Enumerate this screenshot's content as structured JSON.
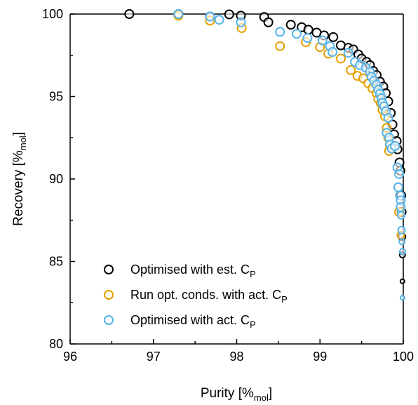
{
  "chart_data": {
    "type": "scatter",
    "xlabel": "Purity [%",
    "xlabel_sub": "mol",
    "xlabel_end": "]",
    "ylabel": "Recovery [%",
    "ylabel_sub": "mol",
    "ylabel_end": "]",
    "xlim": [
      96,
      100
    ],
    "ylim": [
      80,
      100
    ],
    "xticks": [
      "96",
      "97",
      "98",
      "99",
      "100"
    ],
    "yticks": [
      "80",
      "85",
      "90",
      "95",
      "100"
    ],
    "grid": false,
    "legend_placement": "bottom-left",
    "series": [
      {
        "name": "Optimised with est. C",
        "name_sub": "P",
        "color": "#000000",
        "points": [
          [
            96.71,
            100.0
          ],
          [
            97.3,
            100.0
          ],
          [
            97.68,
            99.85
          ],
          [
            97.91,
            99.98
          ],
          [
            98.05,
            99.9
          ],
          [
            98.33,
            99.82
          ],
          [
            98.38,
            99.5
          ],
          [
            98.65,
            99.35
          ],
          [
            98.78,
            99.2
          ],
          [
            98.86,
            99.05
          ],
          [
            98.96,
            98.87
          ],
          [
            99.05,
            98.7
          ],
          [
            99.16,
            98.6
          ],
          [
            99.25,
            98.1
          ],
          [
            99.34,
            97.95
          ],
          [
            99.4,
            97.85
          ],
          [
            99.46,
            97.55
          ],
          [
            99.5,
            97.3
          ],
          [
            99.56,
            97.1
          ],
          [
            99.6,
            96.9
          ],
          [
            99.64,
            96.55
          ],
          [
            99.68,
            96.3
          ],
          [
            99.72,
            95.9
          ],
          [
            99.76,
            95.6
          ],
          [
            99.79,
            95.2
          ],
          [
            99.82,
            94.7
          ],
          [
            99.85,
            94.0
          ],
          [
            99.87,
            93.3
          ],
          [
            99.89,
            92.7
          ],
          [
            99.92,
            92.3
          ],
          [
            99.93,
            91.8
          ],
          [
            99.955,
            91.0
          ],
          [
            99.965,
            90.5
          ],
          [
            99.975,
            89.0
          ],
          [
            99.98,
            88.0
          ],
          [
            99.985,
            86.5
          ],
          [
            99.99,
            85.4
          ],
          [
            99.99,
            83.8
          ]
        ]
      },
      {
        "name": "Run opt. conds. with act. C",
        "name_sub": "P",
        "color": "#E69F00",
        "points": [
          [
            97.3,
            99.9
          ],
          [
            97.68,
            99.6
          ],
          [
            98.06,
            99.15
          ],
          [
            98.52,
            98.05
          ],
          [
            98.83,
            98.3
          ],
          [
            99.0,
            98.0
          ],
          [
            99.1,
            97.6
          ],
          [
            99.25,
            97.3
          ],
          [
            99.37,
            96.6
          ],
          [
            99.45,
            96.25
          ],
          [
            99.52,
            96.1
          ],
          [
            99.58,
            95.8
          ],
          [
            99.63,
            95.5
          ],
          [
            99.68,
            95.2
          ],
          [
            99.7,
            94.85
          ],
          [
            99.73,
            94.6
          ],
          [
            99.75,
            94.2
          ],
          [
            99.78,
            93.8
          ],
          [
            99.8,
            93.1
          ],
          [
            99.82,
            92.5
          ],
          [
            99.84,
            92.0
          ],
          [
            99.83,
            91.7
          ],
          [
            99.9,
            92.0
          ],
          [
            99.95,
            88.0
          ],
          [
            99.97,
            86.6
          ]
        ]
      },
      {
        "name": "Optimised with act. C",
        "name_sub": "P",
        "color": "#56B4E9",
        "points": [
          [
            97.3,
            100.0
          ],
          [
            97.68,
            99.85
          ],
          [
            97.79,
            99.65
          ],
          [
            98.05,
            99.5
          ],
          [
            98.52,
            98.92
          ],
          [
            98.72,
            98.8
          ],
          [
            98.85,
            98.55
          ],
          [
            99.03,
            98.4
          ],
          [
            99.12,
            98.05
          ],
          [
            99.15,
            97.7
          ],
          [
            99.34,
            97.65
          ],
          [
            99.42,
            97.1
          ],
          [
            99.48,
            96.9
          ],
          [
            99.55,
            96.75
          ],
          [
            99.6,
            96.5
          ],
          [
            99.62,
            96.2
          ],
          [
            99.65,
            95.95
          ],
          [
            99.68,
            95.7
          ],
          [
            99.7,
            95.4
          ],
          [
            99.72,
            95.15
          ],
          [
            99.74,
            94.9
          ],
          [
            99.75,
            94.6
          ],
          [
            99.77,
            94.4
          ],
          [
            99.79,
            94.1
          ],
          [
            99.82,
            93.7
          ],
          [
            99.8,
            92.8
          ],
          [
            99.83,
            92.5
          ],
          [
            99.84,
            92.1
          ],
          [
            99.86,
            91.85
          ],
          [
            99.9,
            92.0
          ],
          [
            99.93,
            90.7
          ],
          [
            99.95,
            90.3
          ],
          [
            99.94,
            89.5
          ],
          [
            99.96,
            89.0
          ],
          [
            99.97,
            88.7
          ],
          [
            99.97,
            88.3
          ],
          [
            99.975,
            87.8
          ],
          [
            99.98,
            86.9
          ],
          [
            99.985,
            86.2
          ],
          [
            99.99,
            85.6
          ],
          [
            99.99,
            82.8
          ]
        ]
      }
    ]
  }
}
